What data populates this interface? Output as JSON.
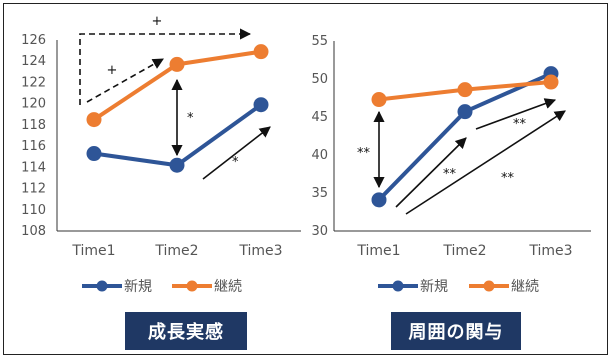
{
  "chart_data": [
    {
      "type": "line",
      "caption": "成長実感",
      "categories": [
        "Time1",
        "Time2",
        "Time3"
      ],
      "ylim": [
        108,
        126
      ],
      "yticks": [
        108,
        110,
        112,
        114,
        116,
        118,
        120,
        122,
        124,
        126
      ],
      "series": [
        {
          "name": "新規",
          "values": [
            115.3,
            114.2,
            119.9
          ],
          "color": "#2e5597"
        },
        {
          "name": "継続",
          "values": [
            118.5,
            123.7,
            124.9
          ],
          "color": "#ed7d31"
        }
      ],
      "annotations": [
        "+",
        "+",
        "*",
        "*"
      ],
      "grid": false,
      "legend": "bottom"
    },
    {
      "type": "line",
      "caption": "周囲の関与",
      "categories": [
        "Time1",
        "Time2",
        "Time3"
      ],
      "ylim": [
        30,
        55
      ],
      "yticks": [
        30,
        35,
        40,
        45,
        50,
        55
      ],
      "series": [
        {
          "name": "新規",
          "values": [
            34.1,
            45.7,
            50.7
          ],
          "color": "#2e5597"
        },
        {
          "name": "継続",
          "values": [
            47.3,
            48.6,
            49.6
          ],
          "color": "#ed7d31"
        }
      ],
      "annotations": [
        "**",
        "**",
        "**",
        "**"
      ],
      "grid": false,
      "legend": "bottom"
    }
  ]
}
